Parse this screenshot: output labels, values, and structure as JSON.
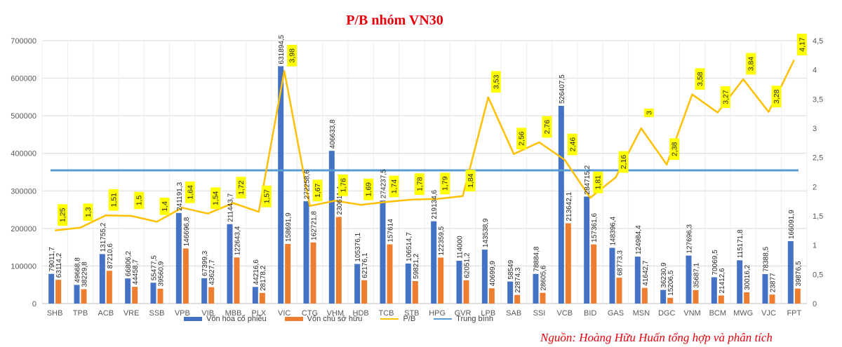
{
  "chart_data": {
    "type": "bar",
    "title": "P/B nhóm VN30",
    "categories": [
      "SHB",
      "TPB",
      "ACB",
      "VRE",
      "SSB",
      "VPB",
      "VIB",
      "MBB",
      "PLX",
      "VIC",
      "CTG",
      "VHM",
      "HDB",
      "TCB",
      "STB",
      "HPG",
      "GVR",
      "LPB",
      "SAB",
      "SSI",
      "VCB",
      "BID",
      "GAS",
      "MSN",
      "DGC",
      "VNM",
      "BCM",
      "MWG",
      "VJC",
      "FPT"
    ],
    "series": [
      {
        "name": "Vốn hóa cổ phiếu",
        "type": "bar",
        "axis": "left",
        "color": "#4472c4",
        "values": [
          79011.7,
          49668.8,
          131755.2,
          66806.2,
          55477.5,
          241191.3,
          67399.3,
          211443.7,
          44216.6,
          631894.5,
          272258.6,
          406633.8,
          105376.1,
          274237.5,
          106514.7,
          219134.6,
          114000,
          143538.9,
          58549,
          78884.8,
          526407.5,
          284715.2,
          148396.4,
          124984.4,
          36230.9,
          127696.3,
          70069.5,
          115171.8,
          78388.5,
          166091.9
        ],
        "labels": [
          "79011,7",
          "49668,8",
          "131755,2",
          "66806,2",
          "55477,5",
          "241191,3",
          "67399,3",
          "211443,7",
          "44216,6",
          "631894,5",
          "272258,6",
          "406633,8",
          "105376,1",
          "274237,5",
          "106514,7",
          "219134,6",
          "114000",
          "143538,9",
          "58549",
          "78884,8",
          "526407,5",
          "284715,2",
          "148396,4",
          "124984,4",
          "36230,9",
          "127696,3",
          "70069,5",
          "115171,8",
          "78388,5",
          "166091,9"
        ]
      },
      {
        "name": "Vốn chủ sở hữu",
        "type": "bar",
        "axis": "left",
        "color": "#ed7d31",
        "values": [
          63114.2,
          38229.8,
          87210.6,
          44458.7,
          39560.9,
          146696.8,
          43627.7,
          122643.4,
          28178.2,
          158691.9,
          162721.8,
          230611.4,
          62176.1,
          157614,
          59821.2,
          122359.5,
          62051.2,
          40699.9,
          22874.3,
          28605.6,
          213642.1,
          157361.6,
          68773.3,
          41642.7,
          15206.5,
          35687.1,
          21412.6,
          30016.2,
          23877,
          39876.5
        ],
        "labels": [
          "63114,2",
          "38229,8",
          "87210,6",
          "44458,7",
          "39560,9",
          "146696,8",
          "43627,7",
          "122643,4",
          "28178,2",
          "158691,9",
          "162721,8",
          "230611,4",
          "62176,1",
          "157614",
          "59821,2",
          "122359,5",
          "62051,2",
          "40699,9",
          "22874,3",
          "28605,6",
          "213642,1",
          "157361,6",
          "68773,3",
          "41642,7",
          "15206,5",
          "35687,1",
          "21412,6",
          "30016,2",
          "23877",
          "39876,5"
        ]
      },
      {
        "name": "P/B",
        "type": "line",
        "axis": "right",
        "color": "#ffc000",
        "values": [
          1.25,
          1.3,
          1.51,
          1.5,
          1.4,
          1.64,
          1.54,
          1.72,
          1.57,
          3.98,
          1.67,
          1.76,
          1.69,
          1.74,
          1.78,
          1.79,
          1.84,
          3.53,
          2.56,
          2.76,
          2.46,
          1.81,
          2.16,
          3,
          2.38,
          3.58,
          3.27,
          3.84,
          3.28,
          4.17
        ],
        "labels": [
          "1,25",
          "1,3",
          "1,51",
          "1,5",
          "1,4",
          "1,64",
          "1,54",
          "1,72",
          "1,57",
          "3,98",
          "1,67",
          "1,76",
          "1,69",
          "1,74",
          "1,78",
          "1,79",
          "1,84",
          "3,53",
          "2,56",
          "2,76",
          "2,46",
          "1,81",
          "2,16",
          "3",
          "2,38",
          "3,58",
          "3,27",
          "3,84",
          "3,28",
          "4,17"
        ]
      },
      {
        "name": "Trung bình",
        "type": "line",
        "axis": "right",
        "color": "#5b9bd5",
        "value": 2.28
      }
    ],
    "y_left": {
      "min": 0,
      "max": 700000,
      "step": 100000,
      "ticks": [
        "0",
        "100000",
        "200000",
        "300000",
        "400000",
        "500000",
        "600000",
        "700000"
      ]
    },
    "y_right": {
      "min": 0,
      "max": 4.5,
      "step": 0.5,
      "ticks": [
        "0",
        "0,5",
        "1",
        "1,5",
        "2",
        "2,5",
        "3",
        "3,5",
        "4",
        "4,5"
      ]
    },
    "grid": true,
    "legend": "bottom"
  },
  "source": "Nguồn: Hoàng Hữu Huấn tổng hợp và phân tích"
}
